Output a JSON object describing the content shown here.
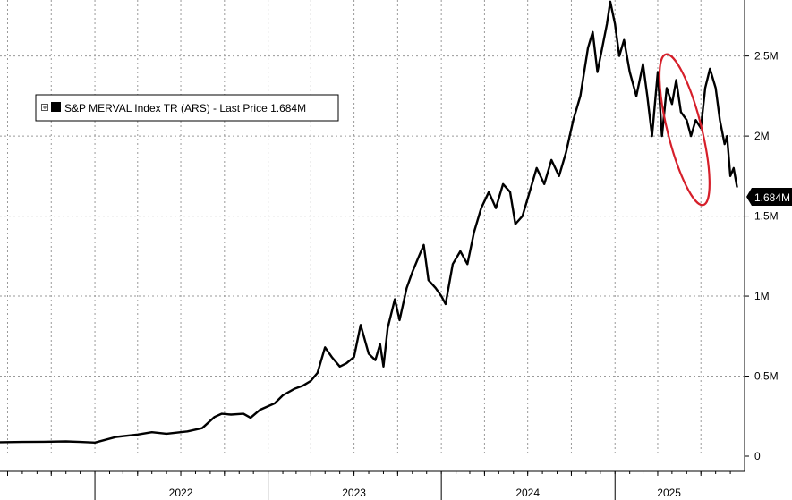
{
  "chart_data": {
    "type": "line",
    "title": "",
    "xlabel": "",
    "ylabel": "",
    "x_ticks": [
      "2022",
      "2023",
      "2024",
      "2025"
    ],
    "y_ticks": [
      {
        "value": 0,
        "label": "0"
      },
      {
        "value": 500000,
        "label": "0.5M"
      },
      {
        "value": 1000000,
        "label": "1M"
      },
      {
        "value": 1500000,
        "label": "1.5M"
      },
      {
        "value": 2000000,
        "label": "2M"
      },
      {
        "value": 2500000,
        "label": "2.5M"
      }
    ],
    "ylim": [
      0,
      2850000
    ],
    "xlim": [
      "2021-06-15",
      "2025-10-01"
    ],
    "y_axis_position": "right",
    "grid": true,
    "legend": {
      "position": "top-left",
      "entries": [
        {
          "name": "S&P MERVAL Index TR (ARS) - Last Price 1.684M",
          "color": "#000000"
        }
      ]
    },
    "last_value_label": "1.684M",
    "highlight": {
      "shape": "ellipse",
      "color": "#d61f2a",
      "x_range": [
        "2025-02-01",
        "2025-09-20"
      ],
      "y_range": [
        1600000,
        2480000
      ]
    },
    "series": [
      {
        "name": "S&P MERVAL Index TR (ARS)",
        "color": "#000000",
        "points": [
          [
            "2021-06-15",
            87000
          ],
          [
            "2021-08-01",
            89000
          ],
          [
            "2021-09-15",
            90000
          ],
          [
            "2021-11-01",
            92000
          ],
          [
            "2021-12-01",
            89000
          ],
          [
            "2022-01-01",
            85000
          ],
          [
            "2022-02-15",
            120000
          ],
          [
            "2022-04-01",
            135000
          ],
          [
            "2022-05-01",
            150000
          ],
          [
            "2022-06-01",
            140000
          ],
          [
            "2022-07-15",
            155000
          ],
          [
            "2022-08-15",
            175000
          ],
          [
            "2022-09-10",
            245000
          ],
          [
            "2022-09-25",
            265000
          ],
          [
            "2022-10-15",
            260000
          ],
          [
            "2022-11-10",
            265000
          ],
          [
            "2022-11-25",
            240000
          ],
          [
            "2022-12-15",
            290000
          ],
          [
            "2023-01-15",
            330000
          ],
          [
            "2023-02-01",
            380000
          ],
          [
            "2023-02-25",
            420000
          ],
          [
            "2023-03-15",
            440000
          ],
          [
            "2023-04-01",
            470000
          ],
          [
            "2023-04-15",
            520000
          ],
          [
            "2023-05-01",
            680000
          ],
          [
            "2023-05-15",
            620000
          ],
          [
            "2023-06-01",
            560000
          ],
          [
            "2023-06-15",
            580000
          ],
          [
            "2023-07-01",
            620000
          ],
          [
            "2023-07-15",
            820000
          ],
          [
            "2023-08-01",
            640000
          ],
          [
            "2023-08-15",
            600000
          ],
          [
            "2023-08-25",
            700000
          ],
          [
            "2023-09-01",
            560000
          ],
          [
            "2023-09-10",
            800000
          ],
          [
            "2023-09-25",
            980000
          ],
          [
            "2023-10-05",
            850000
          ],
          [
            "2023-10-20",
            1050000
          ],
          [
            "2023-11-01",
            1150000
          ],
          [
            "2023-11-15",
            1250000
          ],
          [
            "2023-11-25",
            1320000
          ],
          [
            "2023-12-05",
            1100000
          ],
          [
            "2023-12-20",
            1050000
          ],
          [
            "2024-01-01",
            1000000
          ],
          [
            "2024-01-10",
            950000
          ],
          [
            "2024-01-25",
            1200000
          ],
          [
            "2024-02-10",
            1280000
          ],
          [
            "2024-02-25",
            1200000
          ],
          [
            "2024-03-10",
            1400000
          ],
          [
            "2024-03-25",
            1550000
          ],
          [
            "2024-04-10",
            1650000
          ],
          [
            "2024-04-25",
            1550000
          ],
          [
            "2024-05-10",
            1700000
          ],
          [
            "2024-05-25",
            1650000
          ],
          [
            "2024-06-05",
            1450000
          ],
          [
            "2024-06-20",
            1500000
          ],
          [
            "2024-07-05",
            1650000
          ],
          [
            "2024-07-20",
            1800000
          ],
          [
            "2024-08-05",
            1700000
          ],
          [
            "2024-08-20",
            1850000
          ],
          [
            "2024-09-05",
            1750000
          ],
          [
            "2024-09-20",
            1900000
          ],
          [
            "2024-10-05",
            2100000
          ],
          [
            "2024-10-20",
            2250000
          ],
          [
            "2024-11-05",
            2550000
          ],
          [
            "2024-11-15",
            2650000
          ],
          [
            "2024-11-25",
            2400000
          ],
          [
            "2024-12-05",
            2550000
          ],
          [
            "2024-12-15",
            2700000
          ],
          [
            "2024-12-22",
            2840000
          ],
          [
            "2025-01-01",
            2700000
          ],
          [
            "2025-01-10",
            2500000
          ],
          [
            "2025-01-20",
            2600000
          ],
          [
            "2025-02-01",
            2400000
          ],
          [
            "2025-02-15",
            2250000
          ],
          [
            "2025-03-01",
            2450000
          ],
          [
            "2025-03-10",
            2250000
          ],
          [
            "2025-03-20",
            2000000
          ],
          [
            "2025-04-01",
            2400000
          ],
          [
            "2025-04-10",
            2000000
          ],
          [
            "2025-04-20",
            2300000
          ],
          [
            "2025-05-01",
            2200000
          ],
          [
            "2025-05-10",
            2350000
          ],
          [
            "2025-05-20",
            2150000
          ],
          [
            "2025-06-01",
            2100000
          ],
          [
            "2025-06-10",
            2000000
          ],
          [
            "2025-06-20",
            2100000
          ],
          [
            "2025-07-01",
            2050000
          ],
          [
            "2025-07-10",
            2300000
          ],
          [
            "2025-07-20",
            2420000
          ],
          [
            "2025-08-01",
            2300000
          ],
          [
            "2025-08-10",
            2100000
          ],
          [
            "2025-08-20",
            1950000
          ],
          [
            "2025-08-25",
            2000000
          ],
          [
            "2025-09-01",
            1750000
          ],
          [
            "2025-09-08",
            1800000
          ],
          [
            "2025-09-15",
            1684000
          ]
        ]
      }
    ]
  }
}
